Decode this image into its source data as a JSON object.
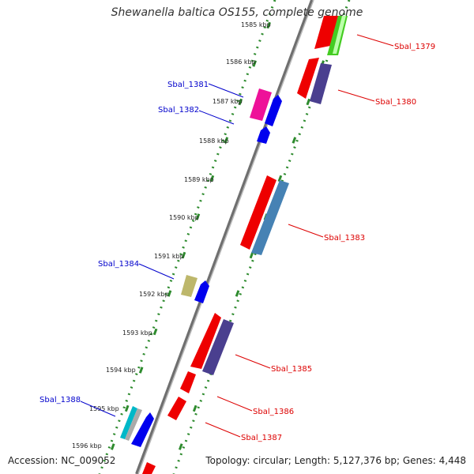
{
  "title": "Shewanella baltica OS155, complete genome",
  "accession": "Accession: NC_009052",
  "topology": "Topology: circular; Length: 5,127,376 bp; Genes: 4,448",
  "colors": {
    "backbone": "#777777",
    "tick_line": "#2e8b2e",
    "forward_label": "#0000cc",
    "reverse_label": "#dd0000"
  },
  "kbp_labels": [
    "1585 kbp",
    "1586 kbp",
    "1587 kbp",
    "1588 kbp",
    "1589 kbp",
    "1590 kbp",
    "1591 kbp",
    "1592 kbp",
    "1593 kbp",
    "1594 kbp",
    "1595 kbp",
    "1596 kbp"
  ],
  "gene_labels": {
    "Sbal_1379": "Sbal_1379",
    "Sbal_1380": "Sbal_1380",
    "Sbal_1381": "Sbal_1381",
    "Sbal_1382": "Sbal_1382",
    "Sbal_1383": "Sbal_1383",
    "Sbal_1384": "Sbal_1384",
    "Sbal_1385": "Sbal_1385",
    "Sbal_1386": "Sbal_1386",
    "Sbal_1387": "Sbal_1387",
    "Sbal_1388": "Sbal_1388"
  }
}
